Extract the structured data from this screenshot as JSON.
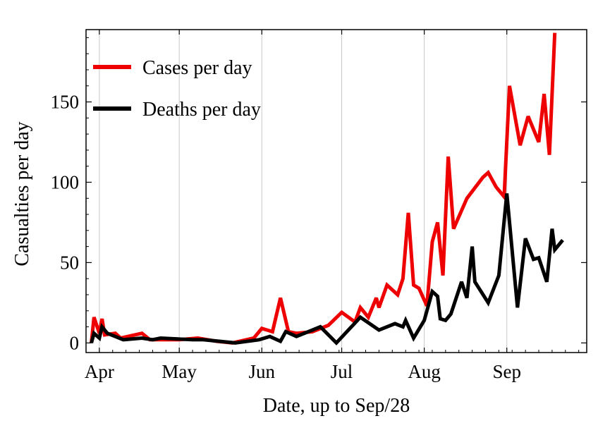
{
  "chart_data": {
    "type": "line",
    "title": "",
    "xlabel": "Date, up to Sep/28",
    "ylabel": "Casualties per day",
    "xlim": [
      "2020-03-27",
      "2020-10-01"
    ],
    "ylim": [
      -6,
      195
    ],
    "x_ticks": [
      {
        "date": "2020-04-01",
        "label": "Apr"
      },
      {
        "date": "2020-05-01",
        "label": "May"
      },
      {
        "date": "2020-06-01",
        "label": "Jun"
      },
      {
        "date": "2020-07-01",
        "label": "Jul"
      },
      {
        "date": "2020-08-01",
        "label": "Aug"
      },
      {
        "date": "2020-09-01",
        "label": "Sep"
      }
    ],
    "y_ticks": [
      0,
      50,
      100,
      150
    ],
    "grid": "vertical gridlines at month ticks",
    "legend_position": "top-left",
    "series": [
      {
        "name": "Cases per day",
        "color": "#ee0000",
        "points": [
          [
            "2020-03-29",
            0
          ],
          [
            "2020-03-30",
            16
          ],
          [
            "2020-04-01",
            6
          ],
          [
            "2020-04-02",
            15
          ],
          [
            "2020-04-03",
            5
          ],
          [
            "2020-04-07",
            6
          ],
          [
            "2020-04-09",
            3
          ],
          [
            "2020-04-17",
            6
          ],
          [
            "2020-04-20",
            2
          ],
          [
            "2020-04-27",
            2
          ],
          [
            "2020-05-01",
            2
          ],
          [
            "2020-05-08",
            3
          ],
          [
            "2020-05-15",
            1
          ],
          [
            "2020-05-21",
            0
          ],
          [
            "2020-05-29",
            3
          ],
          [
            "2020-06-01",
            9
          ],
          [
            "2020-06-05",
            7
          ],
          [
            "2020-06-08",
            28
          ],
          [
            "2020-06-11",
            7
          ],
          [
            "2020-06-14",
            6
          ],
          [
            "2020-06-20",
            7
          ],
          [
            "2020-06-26",
            11
          ],
          [
            "2020-07-01",
            19
          ],
          [
            "2020-07-06",
            13
          ],
          [
            "2020-07-08",
            22
          ],
          [
            "2020-07-11",
            16
          ],
          [
            "2020-07-14",
            28
          ],
          [
            "2020-07-15",
            22
          ],
          [
            "2020-07-18",
            36
          ],
          [
            "2020-07-22",
            30
          ],
          [
            "2020-07-24",
            40
          ],
          [
            "2020-07-26",
            81
          ],
          [
            "2020-07-28",
            36
          ],
          [
            "2020-07-30",
            34
          ],
          [
            "2020-08-02",
            23
          ],
          [
            "2020-08-04",
            63
          ],
          [
            "2020-08-06",
            75
          ],
          [
            "2020-08-08",
            42
          ],
          [
            "2020-08-10",
            116
          ],
          [
            "2020-08-12",
            71
          ],
          [
            "2020-08-17",
            90
          ],
          [
            "2020-08-23",
            103
          ],
          [
            "2020-08-25",
            106
          ],
          [
            "2020-08-28",
            97
          ],
          [
            "2020-08-31",
            91
          ],
          [
            "2020-09-02",
            160
          ],
          [
            "2020-09-06",
            123
          ],
          [
            "2020-09-09",
            141
          ],
          [
            "2020-09-13",
            125
          ],
          [
            "2020-09-15",
            155
          ],
          [
            "2020-09-17",
            117
          ],
          [
            "2020-09-19",
            193
          ]
        ]
      },
      {
        "name": "Deaths per day",
        "color": "#000000",
        "points": [
          [
            "2020-03-29",
            0
          ],
          [
            "2020-03-30",
            6
          ],
          [
            "2020-04-01",
            3
          ],
          [
            "2020-04-02",
            10
          ],
          [
            "2020-04-04",
            6
          ],
          [
            "2020-04-10",
            2
          ],
          [
            "2020-04-17",
            3
          ],
          [
            "2020-04-21",
            2
          ],
          [
            "2020-04-24",
            3
          ],
          [
            "2020-05-06",
            2
          ],
          [
            "2020-05-10",
            2
          ],
          [
            "2020-05-22",
            0
          ],
          [
            "2020-05-31",
            2
          ],
          [
            "2020-06-04",
            4
          ],
          [
            "2020-06-08",
            1
          ],
          [
            "2020-06-10",
            7
          ],
          [
            "2020-06-14",
            4
          ],
          [
            "2020-06-23",
            10
          ],
          [
            "2020-06-29",
            0
          ],
          [
            "2020-07-08",
            16
          ],
          [
            "2020-07-15",
            8
          ],
          [
            "2020-07-21",
            12
          ],
          [
            "2020-07-24",
            10
          ],
          [
            "2020-07-25",
            14
          ],
          [
            "2020-07-28",
            3
          ],
          [
            "2020-08-01",
            14
          ],
          [
            "2020-08-04",
            32
          ],
          [
            "2020-08-06",
            29
          ],
          [
            "2020-08-07",
            15
          ],
          [
            "2020-08-09",
            14
          ],
          [
            "2020-08-11",
            18
          ],
          [
            "2020-08-15",
            38
          ],
          [
            "2020-08-17",
            28
          ],
          [
            "2020-08-19",
            60
          ],
          [
            "2020-08-20",
            38
          ],
          [
            "2020-08-25",
            25
          ],
          [
            "2020-08-29",
            42
          ],
          [
            "2020-09-01",
            93
          ],
          [
            "2020-09-05",
            22
          ],
          [
            "2020-09-08",
            65
          ],
          [
            "2020-09-11",
            52
          ],
          [
            "2020-09-13",
            53
          ],
          [
            "2020-09-16",
            38
          ],
          [
            "2020-09-18",
            71
          ],
          [
            "2020-09-19",
            58
          ],
          [
            "2020-09-22",
            64
          ]
        ]
      }
    ]
  }
}
